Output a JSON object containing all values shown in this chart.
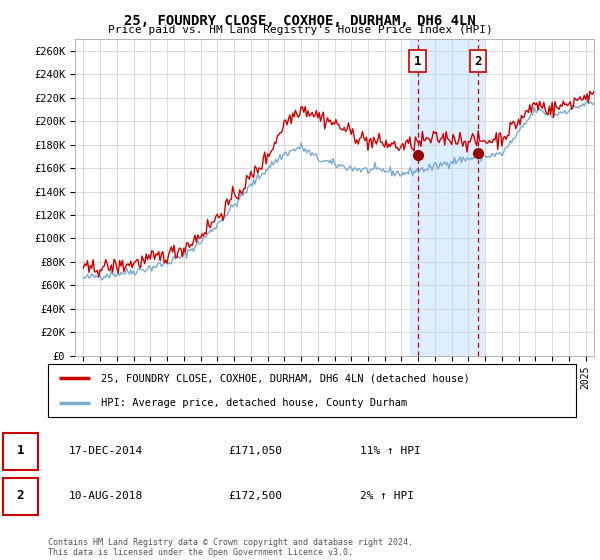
{
  "title": "25, FOUNDRY CLOSE, COXHOE, DURHAM, DH6 4LN",
  "subtitle": "Price paid vs. HM Land Registry's House Price Index (HPI)",
  "red_color": "#cc0000",
  "blue_color": "#7aabcf",
  "highlight_color": "#ddeeff",
  "sale1_x_year": 2014.958,
  "sale1_y": 171050,
  "sale2_x_year": 2018.583,
  "sale2_y": 172500,
  "highlight_xmin": 2014.5,
  "highlight_xmax": 2018.917,
  "ylim_min": 0,
  "ylim_max": 270000,
  "yticks": [
    0,
    20000,
    40000,
    60000,
    80000,
    100000,
    120000,
    140000,
    160000,
    180000,
    200000,
    220000,
    240000,
    260000
  ],
  "ytick_labels": [
    "£0",
    "£20K",
    "£40K",
    "£60K",
    "£80K",
    "£100K",
    "£120K",
    "£140K",
    "£160K",
    "£180K",
    "£200K",
    "£220K",
    "£240K",
    "£260K"
  ],
  "legend_label1": "25, FOUNDRY CLOSE, COXHOE, DURHAM, DH6 4LN (detached house)",
  "legend_label2": "HPI: Average price, detached house, County Durham",
  "annotation1_date": "17-DEC-2014",
  "annotation1_price": "£171,050",
  "annotation1_hpi": "11% ↑ HPI",
  "annotation2_date": "10-AUG-2018",
  "annotation2_price": "£172,500",
  "annotation2_hpi": "2% ↑ HPI",
  "footnote": "Contains HM Land Registry data © Crown copyright and database right 2024.\nThis data is licensed under the Open Government Licence v3.0.",
  "bg_color": "#ffffff",
  "grid_color": "#cccccc",
  "xmin": 1995.0,
  "xmax": 2025.5
}
